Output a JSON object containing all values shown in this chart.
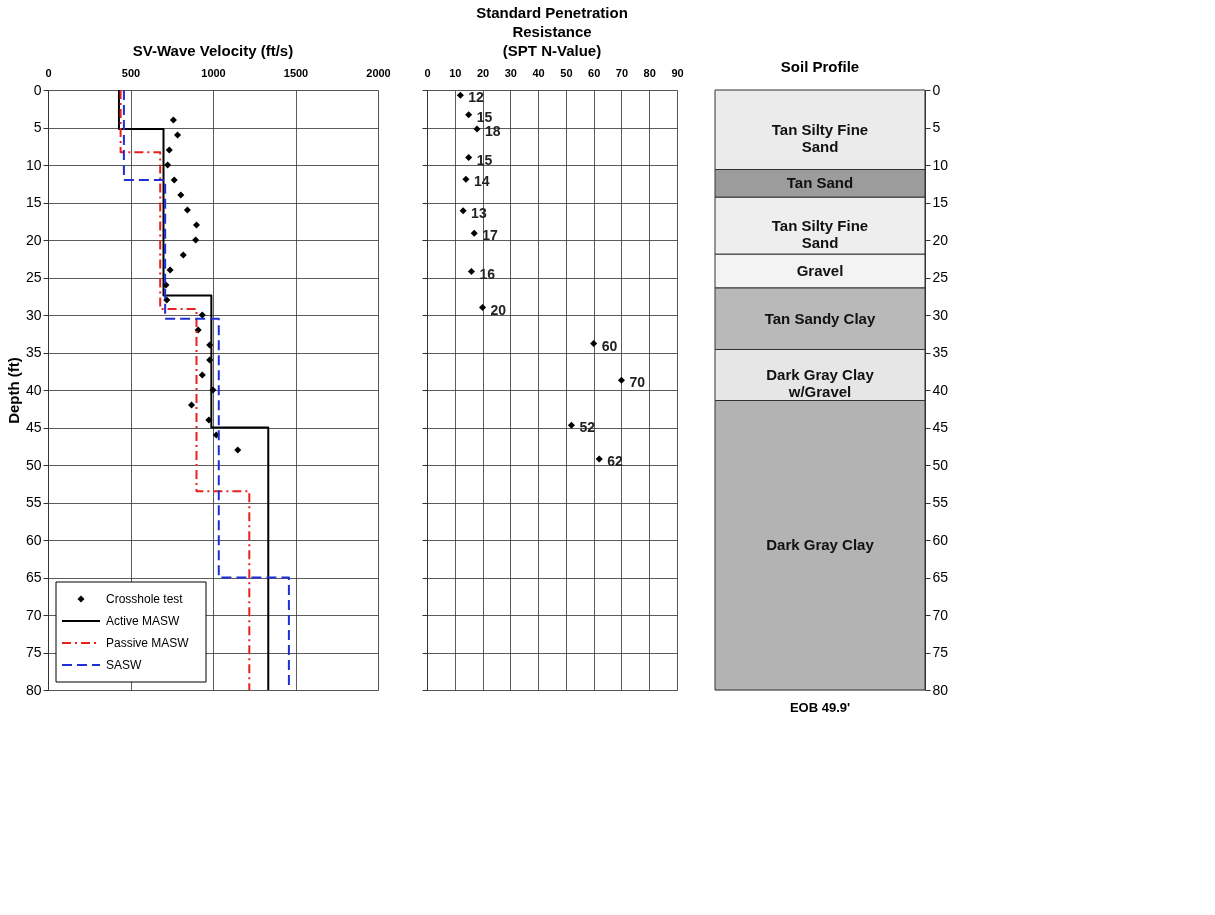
{
  "chart_data": [
    {
      "type": "line",
      "title": "SV-Wave Velocity (ft/s)",
      "ylabel": "Depth (ft)",
      "xlim": [
        0,
        2000
      ],
      "xticks": [
        0,
        500,
        1000,
        1500,
        2000
      ],
      "ylim": [
        80,
        0
      ],
      "yticks": [
        0,
        5,
        10,
        15,
        20,
        25,
        30,
        35,
        40,
        45,
        50,
        55,
        60,
        65,
        70,
        75,
        80
      ],
      "grid": true,
      "legend": "bottom left",
      "series": [
        {
          "name": "Crosshole test",
          "type": "scatter",
          "marker": "diamond",
          "color": "#000000",
          "x": [
            760,
            785,
            735,
            725,
            765,
            805,
            845,
            900,
            895,
            820,
            740,
            715,
            720,
            935,
            910,
            980,
            980,
            935,
            1000,
            870,
            975,
            1020,
            1150
          ],
          "values": [
            4,
            6,
            8,
            10,
            12,
            14,
            16,
            18,
            20,
            22,
            24,
            26,
            28,
            30,
            32,
            34,
            36,
            38,
            40,
            42,
            44,
            46,
            48
          ]
        },
        {
          "name": "Active MASW",
          "type": "line",
          "line_style": "solid",
          "color": "#000000",
          "x": [
            430,
            430,
            700,
            700,
            990,
            990,
            1335,
            1335
          ],
          "values": [
            0,
            5.2,
            5.2,
            27.4,
            27.4,
            45,
            45,
            80
          ]
        },
        {
          "name": "Passive MASW",
          "type": "line",
          "line_style": "dashdot",
          "color": "#e8211d",
          "x": [
            440,
            440,
            680,
            680,
            900,
            900,
            1220,
            1220
          ],
          "values": [
            0,
            8.3,
            8.3,
            29.2,
            29.2,
            53.5,
            53.5,
            80
          ]
        },
        {
          "name": "SASW",
          "type": "line",
          "line_style": "dashed",
          "color": "#1f2fd6",
          "x": [
            460,
            460,
            710,
            710,
            1035,
            1035,
            1460,
            1460
          ],
          "values": [
            0,
            12,
            12,
            30.5,
            30.5,
            65,
            65,
            80
          ]
        }
      ]
    },
    {
      "type": "scatter",
      "title": "Standard Penetration\nResistance\n(SPT N-Value)",
      "xlim": [
        0,
        90
      ],
      "xticks": [
        0,
        10,
        20,
        30,
        40,
        50,
        60,
        70,
        80,
        90
      ],
      "ylim": [
        80,
        0
      ],
      "yticks": [
        0,
        5,
        10,
        15,
        20,
        25,
        30,
        35,
        40,
        45,
        50,
        55,
        60,
        65,
        70,
        75,
        80
      ],
      "grid": true,
      "tick_labels": "x",
      "marker": "diamond",
      "orientation": "horizontal",
      "data_labels": true,
      "series": [
        {
          "color": "#000000",
          "x": [
            0.7,
            3.3,
            5.2,
            9.0,
            11.9,
            16.1,
            19.1,
            24.2,
            29.0,
            33.8,
            38.7,
            44.7,
            49.2
          ],
          "values": [
            12,
            15,
            18,
            15,
            14,
            13,
            17,
            16,
            20,
            60,
            70,
            52,
            62
          ]
        }
      ]
    },
    {
      "type": "bar",
      "stacked": true,
      "title": "Soil Profile",
      "categories": [
        null
      ],
      "ylim": [
        80,
        0
      ],
      "yticks": [
        0,
        5,
        10,
        15,
        20,
        25,
        30,
        35,
        40,
        45,
        50,
        55,
        60,
        65,
        70,
        75,
        80
      ],
      "tick_labels": "y",
      "annotations": [
        "EOB 49.9'"
      ],
      "series": [
        {
          "name": "Tan Silty Fine Sand",
          "color": "#ebebeb",
          "values": [
            10.6
          ]
        },
        {
          "name": "Tan Sand",
          "color": "#9c9c9c",
          "values": [
            3.7
          ]
        },
        {
          "name": "Tan Silty Fine Sand",
          "color": "#eeeeee",
          "values": [
            7.6
          ]
        },
        {
          "name": "Gravel",
          "color": "#f3f3f3",
          "values": [
            4.5
          ]
        },
        {
          "name": "Tan Sandy Clay",
          "color": "#b9b9b9",
          "values": [
            8.2
          ]
        },
        {
          "name": "Dark Gray Clay w/Gravel",
          "color": "#e6e6e6",
          "values": [
            6.8
          ]
        },
        {
          "name": "Dark Gray Clay",
          "color": "#b3b3b3",
          "values": [
            38.6
          ]
        }
      ]
    }
  ]
}
